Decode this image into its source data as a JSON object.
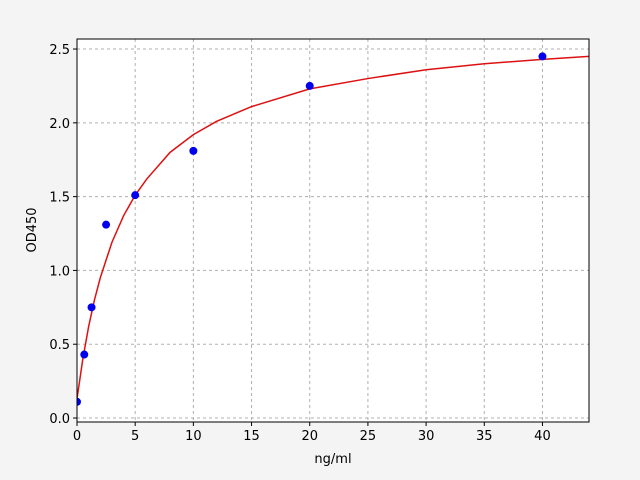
{
  "chart_data": {
    "type": "scatter",
    "xlabel": "ng/ml",
    "ylabel": "OD450",
    "xlim": [
      0,
      44
    ],
    "ylim": [
      -0.027,
      2.568
    ],
    "xticks": [
      0,
      5,
      10,
      15,
      20,
      25,
      30,
      35,
      40
    ],
    "yticks": [
      {
        "value": 0,
        "label": "0.0"
      },
      0.5,
      {
        "value": 1,
        "label": "1.0"
      },
      1.5,
      {
        "value": 2,
        "label": "2.0"
      },
      2.5
    ],
    "grid": true,
    "series": [
      {
        "type": "scatter",
        "color": "#0000ee",
        "x": [
          0,
          0.625,
          1.25,
          2.5,
          5,
          10,
          20,
          40
        ],
        "values": [
          0.11,
          0.43,
          0.75,
          1.31,
          1.51,
          1.81,
          2.25,
          2.45
        ]
      },
      {
        "type": "line",
        "color": "#dd1111",
        "x": [
          0,
          0.5,
          1,
          1.5,
          2,
          3,
          4,
          5,
          6,
          8,
          10,
          12,
          15,
          20,
          25,
          30,
          35,
          40,
          44
        ],
        "values": [
          0.13,
          0.4,
          0.62,
          0.8,
          0.95,
          1.19,
          1.37,
          1.51,
          1.62,
          1.8,
          1.92,
          2.01,
          2.11,
          2.23,
          2.3,
          2.36,
          2.4,
          2.43,
          2.45
        ]
      }
    ]
  }
}
